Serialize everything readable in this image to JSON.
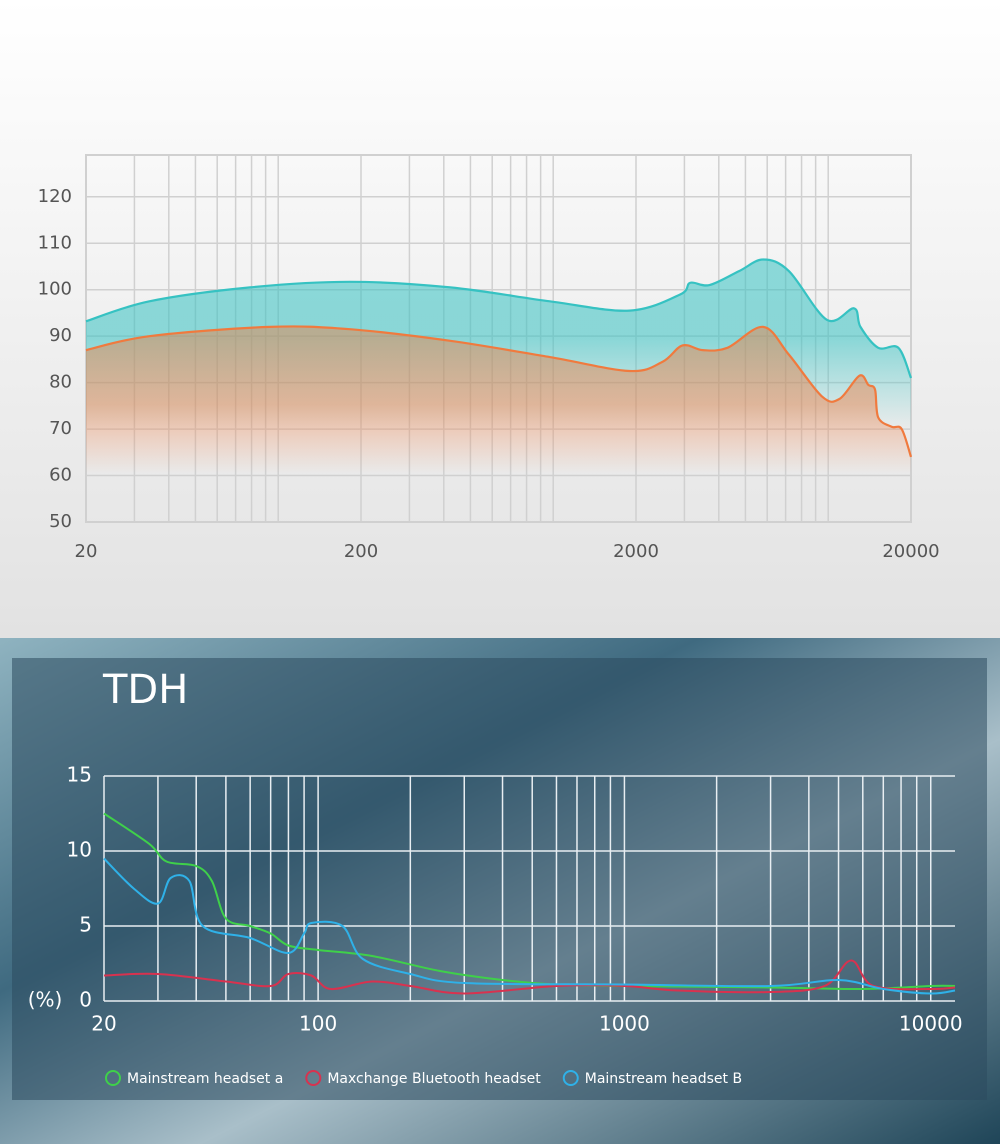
{
  "chart_data": [
    {
      "type": "line",
      "xscale": "log",
      "grid": true,
      "xlim": [
        20,
        20000
      ],
      "ylim": [
        50,
        129
      ],
      "xticks": [
        20,
        200,
        2000,
        20000
      ],
      "minor_xticks": [
        30,
        40,
        50,
        60,
        70,
        80,
        90,
        100,
        300,
        400,
        500,
        600,
        700,
        800,
        900,
        1000,
        3000,
        4000,
        5000,
        6000,
        7000,
        8000,
        9000,
        10000
      ],
      "yticks": [
        50,
        60,
        70,
        80,
        90,
        100,
        110,
        120
      ],
      "series": [
        {
          "color": "#36c2c2",
          "x": [
            20,
            34,
            79,
            182,
            422,
            972,
            1895,
            2900,
            3150,
            3700,
            4740,
            5800,
            7200,
            9900,
            12400,
            13100,
            15200,
            18000,
            20000
          ],
          "values": [
            93.2,
            97.5,
            100.5,
            101.7,
            100.5,
            97.5,
            95.5,
            99,
            101.5,
            101,
            104,
            106.5,
            104,
            93.5,
            96,
            92,
            87.5,
            87.5,
            81
          ]
        },
        {
          "color": "#f07a3e",
          "x": [
            20,
            34,
            93,
            182,
            422,
            972,
            1895,
            2500,
            2950,
            3500,
            4300,
            5800,
            7200,
            9500,
            11000,
            13000,
            14000,
            14800,
            15200,
            17000,
            18500,
            20000
          ],
          "values": [
            87,
            90,
            92,
            91.5,
            89,
            85.5,
            82.5,
            84.5,
            88,
            87,
            87.5,
            92,
            86,
            77,
            76.5,
            81.5,
            79.5,
            78.5,
            72.5,
            70.5,
            70,
            64
          ]
        }
      ]
    },
    {
      "type": "line",
      "title": "TDH",
      "ylabel": "(%)",
      "xscale": "log",
      "grid": true,
      "legend": "bottom",
      "xlim": [
        20,
        12000
      ],
      "ylim": [
        0,
        15
      ],
      "xticks": [
        20,
        100,
        1000,
        10000
      ],
      "minor_xticks": [
        30,
        40,
        50,
        60,
        70,
        80,
        90,
        200,
        300,
        400,
        500,
        600,
        700,
        800,
        900,
        2000,
        3000,
        4000,
        5000,
        6000,
        7000,
        8000,
        9000
      ],
      "yticks": [
        0,
        5,
        10,
        15
      ],
      "series": [
        {
          "name": "Mainstream headset a",
          "color": "#3fd04a",
          "x": [
            20,
            28,
            32,
            40,
            45,
            50,
            60,
            70,
            80,
            100,
            150,
            250,
            400,
            600,
            1000,
            3000,
            6000,
            10000,
            12000
          ],
          "values": [
            12.5,
            10.5,
            9.3,
            9,
            8,
            5.5,
            5,
            4.5,
            3.7,
            3.4,
            3,
            2,
            1.4,
            1.1,
            1,
            0.9,
            0.8,
            1,
            1
          ]
        },
        {
          "name": "Maxchange  Bluetooth headset",
          "color": "#d8324f",
          "x": [
            20,
            30,
            50,
            70,
            80,
            95,
            110,
            150,
            200,
            300,
            600,
            1000,
            1500,
            3000,
            4500,
            5500,
            6500,
            10000,
            12000
          ],
          "values": [
            1.7,
            1.8,
            1.3,
            1,
            1.8,
            1.7,
            0.8,
            1.3,
            1,
            0.5,
            1,
            1,
            0.7,
            0.6,
            1,
            2.7,
            1,
            0.8,
            0.9
          ]
        },
        {
          "name": "Mainstream headset B",
          "color": "#2fb1e8",
          "x": [
            20,
            25,
            30,
            33,
            38,
            42,
            60,
            80,
            90,
            95,
            120,
            140,
            200,
            300,
            1000,
            3000,
            5000,
            7000,
            10000,
            12000
          ],
          "values": [
            9.5,
            7.5,
            6.5,
            8.2,
            8,
            5,
            4.2,
            3.2,
            4.5,
            5.2,
            5,
            2.8,
            1.8,
            1.2,
            1.1,
            1,
            1.4,
            0.8,
            0.5,
            0.7
          ]
        }
      ]
    }
  ]
}
